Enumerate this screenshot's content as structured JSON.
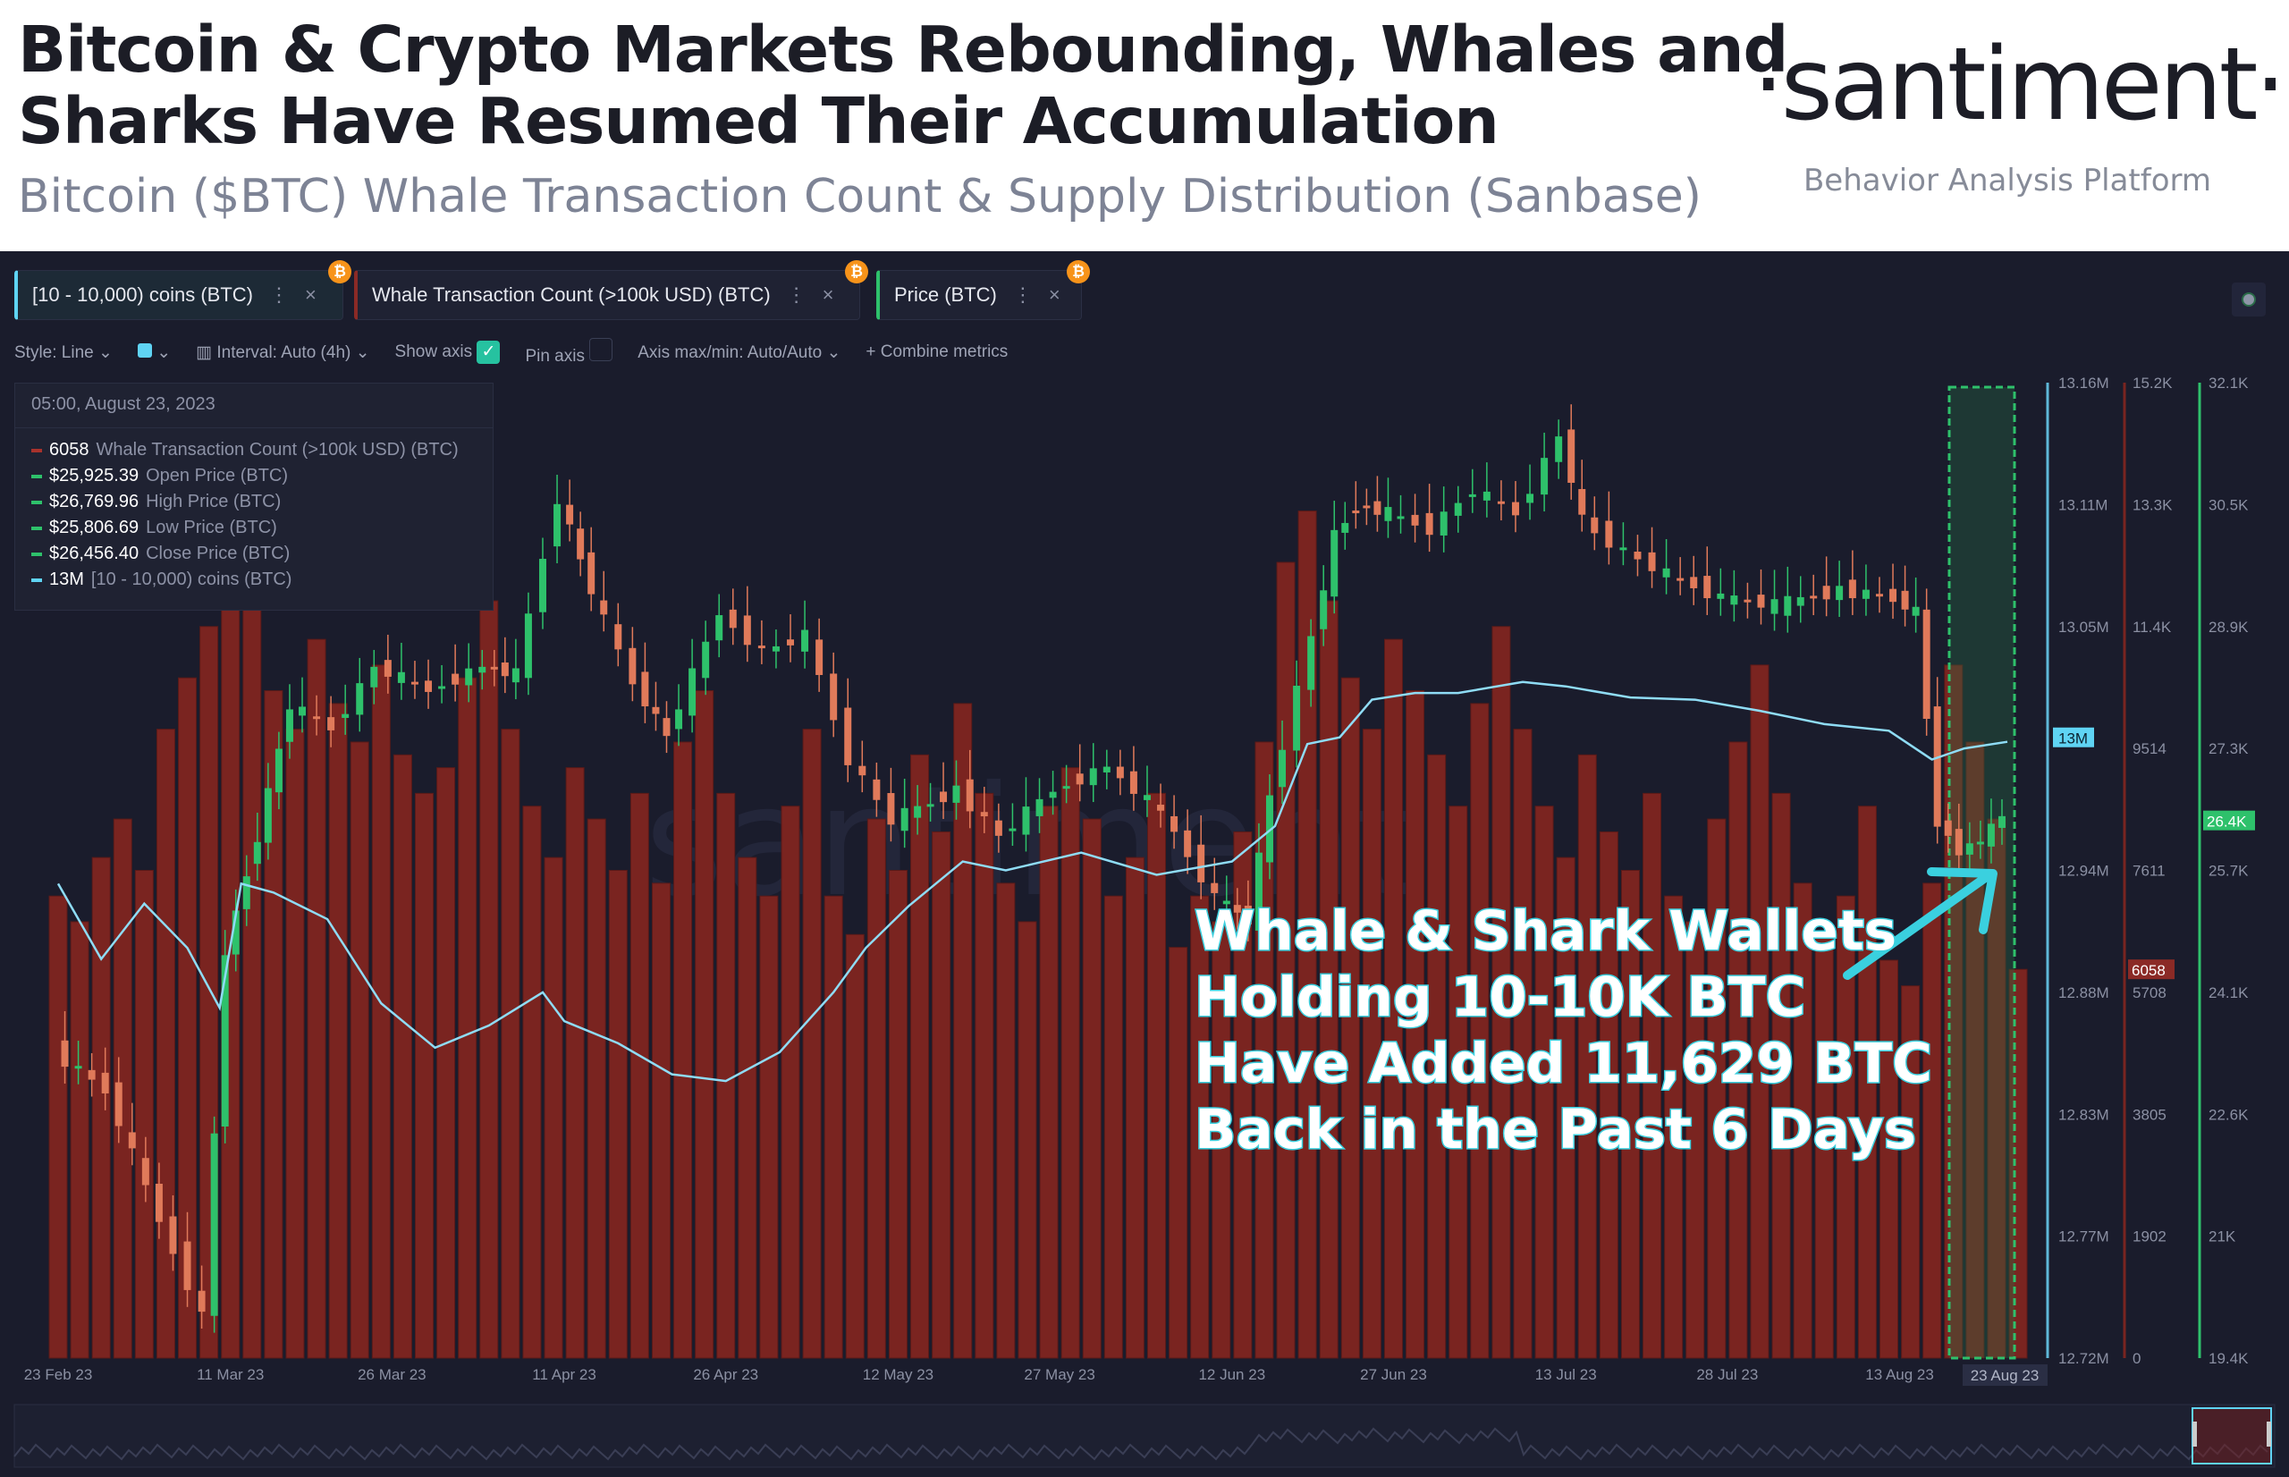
{
  "header": {
    "title_line1": "Bitcoin & Crypto Markets Rebounding, Whales and",
    "title_line2": "Sharks Have Resumed Their Accumulation",
    "subtitle": "Bitcoin ($BTC) Whale Transaction Count & Supply Distribution (Sanbase)",
    "logo": "·santiment·",
    "logo_tagline": "Behavior Analysis Platform"
  },
  "tabs": [
    {
      "label": "[10 - 10,000) coins (BTC)",
      "color": "#5fd4f4"
    },
    {
      "label": "Whale Transaction Count (>100k USD) (BTC)",
      "color": "#8b2a26"
    },
    {
      "label": "Price (BTC)",
      "color": "#2ec16b"
    }
  ],
  "toolbar": {
    "style": "Style: Line",
    "interval": "Interval: Auto (4h)",
    "show_axis": "Show axis",
    "pin_axis": "Pin axis",
    "axis_maxmin": "Axis max/min: Auto/Auto",
    "combine": "Combine metrics"
  },
  "tooltip": {
    "date": "05:00, August 23, 2023",
    "rows": [
      {
        "value": "6058",
        "name": "Whale Transaction Count (>100k USD) (BTC)",
        "color": "#a8322c"
      },
      {
        "value": "$25,925.39",
        "name": "Open Price (BTC)",
        "color": "#2ec16b"
      },
      {
        "value": "$26,769.96",
        "name": "High Price (BTC)",
        "color": "#2ec16b"
      },
      {
        "value": "$25,806.69",
        "name": "Low Price (BTC)",
        "color": "#2ec16b"
      },
      {
        "value": "$26,456.40",
        "name": "Close Price (BTC)",
        "color": "#2ec16b"
      },
      {
        "value": "13M",
        "name": "[10 - 10,000) coins (BTC)",
        "color": "#5fd4f4"
      }
    ]
  },
  "annotation": [
    "Whale & Shark Wallets",
    "Holding 10-10K BTC",
    "Have Added 11,629 BTC",
    "Back in the Past 6 Days"
  ],
  "chart_data": {
    "type": "line",
    "x_tick_labels": [
      "23 Feb 23",
      "11 Mar 23",
      "26 Mar 23",
      "11 Apr 23",
      "26 Apr 23",
      "12 May 23",
      "27 May 23",
      "12 Jun 23",
      "27 Jun 23",
      "13 Jul 23",
      "28 Jul 23",
      "13 Aug 23"
    ],
    "x_tick_days": [
      0,
      16,
      31,
      47,
      62,
      78,
      93,
      109,
      124,
      140,
      155,
      171
    ],
    "x_hover_label": "23 Aug 23",
    "x_dates_start": "2023-02-23",
    "x_dates_end": "2023-08-23",
    "axes": {
      "supply": {
        "ticks": [
          "13.16M",
          "13.11M",
          "13.05M",
          "12.94M",
          "12.88M",
          "12.83M",
          "12.77M",
          "12.72M"
        ],
        "range": [
          12.72,
          13.16
        ],
        "current": "13M",
        "color": "#5fd4f4"
      },
      "whale_count": {
        "ticks": [
          "15.2K",
          "13.3K",
          "11.4K",
          "9514",
          "7611",
          "5708",
          "3805",
          "1902",
          "0"
        ],
        "range": [
          0,
          15200
        ],
        "current": "6058",
        "color": "#8b2a26"
      },
      "price": {
        "ticks": [
          "32.1K",
          "30.5K",
          "28.9K",
          "27.3K",
          "25.7K",
          "24.1K",
          "22.6K",
          "21K",
          "19.4K"
        ],
        "range": [
          19400,
          32100
        ],
        "current": "26.4K",
        "color": "#2ec16b"
      }
    },
    "supply_tick_all": [
      "13.16M",
      "13.11M",
      "13.05M",
      "13M",
      "12.94M",
      "12.88M",
      "12.83M",
      "12.77M",
      "12.72M"
    ],
    "series": [
      {
        "name": "[10 - 10,000) coins (BTC)",
        "unit": "M BTC",
        "days": [
          0,
          4,
          8,
          12,
          15,
          17,
          20,
          25,
          30,
          35,
          40,
          45,
          47,
          52,
          57,
          62,
          67,
          72,
          75,
          79,
          84,
          88,
          95,
          102,
          109,
          113,
          116,
          119,
          122,
          126,
          130,
          136,
          140,
          146,
          152,
          158,
          164,
          170,
          174,
          177,
          181
        ],
        "values": [
          12.934,
          12.9,
          12.925,
          12.905,
          12.878,
          12.934,
          12.93,
          12.918,
          12.88,
          12.86,
          12.87,
          12.885,
          12.872,
          12.862,
          12.848,
          12.845,
          12.858,
          12.885,
          12.905,
          12.924,
          12.944,
          12.94,
          12.948,
          12.938,
          12.944,
          12.96,
          12.997,
          13.0,
          13.017,
          13.02,
          13.02,
          13.025,
          13.023,
          13.018,
          13.017,
          13.012,
          13.006,
          13.003,
          12.99,
          12.995,
          12.998
        ]
      },
      {
        "name": "Whale Transaction Count (>100k USD) (BTC)",
        "days_step": 2,
        "values": [
          7200,
          6800,
          7800,
          8400,
          7600,
          9800,
          10600,
          11400,
          12600,
          11800,
          10400,
          9800,
          11200,
          10200,
          9600,
          10800,
          9400,
          8800,
          9200,
          10600,
          11800,
          9800,
          8600,
          7800,
          9200,
          8400,
          7600,
          8800,
          7400,
          9600,
          10400,
          8800,
          7800,
          7200,
          8600,
          9800,
          7200,
          6600,
          8400,
          7600,
          9400,
          8200,
          10200,
          8800,
          7400,
          6800,
          8600,
          9200,
          8400,
          7200,
          7800,
          8800,
          6400,
          7200,
          6800,
          8200,
          9600,
          12400,
          13200,
          11800,
          10600,
          9800,
          11200,
          10400,
          9400,
          8600,
          10200,
          11400,
          9800,
          8600,
          7800,
          9400,
          8200,
          7600,
          8800,
          7200,
          6800,
          8400,
          9600,
          10800,
          8800,
          7400,
          6600,
          7200,
          8600,
          6200,
          5800,
          7400,
          10800,
          9600,
          8400,
          6058
        ]
      },
      {
        "name": "Price (BTC)",
        "unit": "USD",
        "days": [
          0,
          5,
          10,
          14,
          16,
          19,
          22,
          26,
          30,
          35,
          40,
          43,
          47,
          50,
          54,
          57,
          62,
          66,
          70,
          74,
          78,
          84,
          88,
          93,
          98,
          103,
          108,
          111,
          113,
          117,
          119,
          121,
          124,
          128,
          132,
          136,
          140,
          142,
          146,
          150,
          155,
          160,
          166,
          171,
          173,
          175,
          177,
          179,
          181
        ],
        "values": [
          23400,
          22900,
          21200,
          19950,
          24700,
          26200,
          27900,
          27600,
          28400,
          28100,
          28400,
          28300,
          30600,
          29400,
          28200,
          27500,
          29100,
          28600,
          28800,
          27200,
          26400,
          26800,
          26200,
          26800,
          27100,
          26500,
          25400,
          25100,
          26700,
          28800,
          30100,
          30500,
          30400,
          30200,
          30700,
          30400,
          31400,
          30300,
          29900,
          29600,
          29300,
          29200,
          29400,
          29300,
          29100,
          26400,
          26000,
          26150,
          26456
        ]
      }
    ]
  }
}
